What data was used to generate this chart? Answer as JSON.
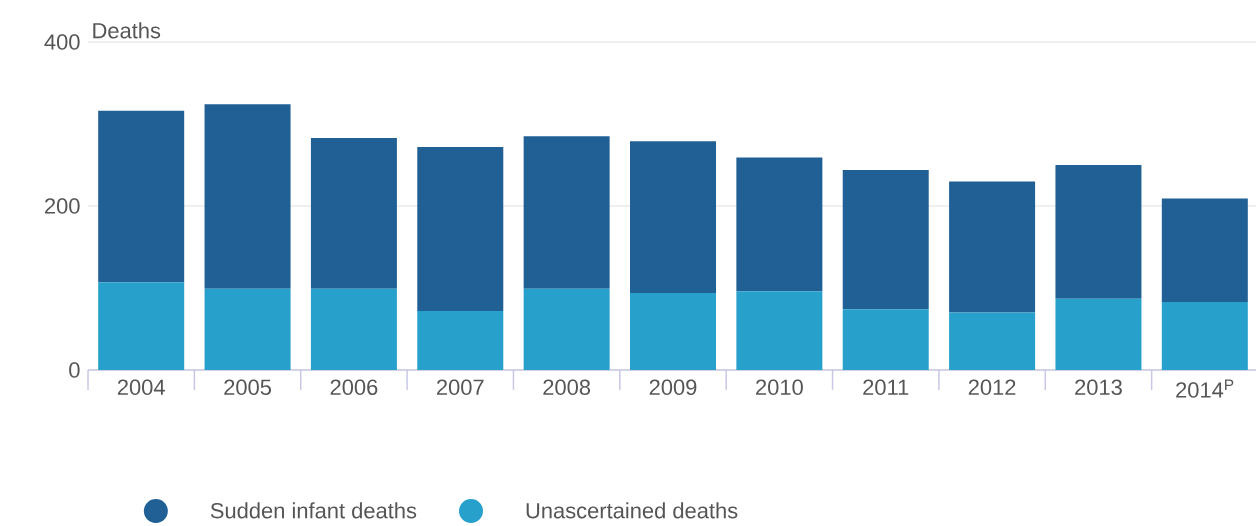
{
  "chart_data": {
    "type": "bar",
    "stacked": true,
    "ylabel": "Deaths",
    "categories": [
      "2004",
      "2005",
      "2006",
      "2007",
      "2008",
      "2009",
      "2010",
      "2011",
      "2012",
      "2013",
      "2014$^{P}$"
    ],
    "series": [
      {
        "name": "Unascertained deaths",
        "color": "#27a0cc",
        "values": [
          107,
          99,
          99,
          72,
          99,
          94,
          96,
          74,
          70,
          87,
          83
        ]
      },
      {
        "name": "Sudden infant deaths",
        "color": "#206095",
        "values": [
          209,
          225,
          184,
          200,
          186,
          185,
          163,
          170,
          160,
          163,
          126
        ]
      }
    ],
    "ylim": [
      0,
      400
    ],
    "yticks": [
      0,
      200,
      400
    ],
    "grid": "y",
    "legend": "bottom"
  }
}
